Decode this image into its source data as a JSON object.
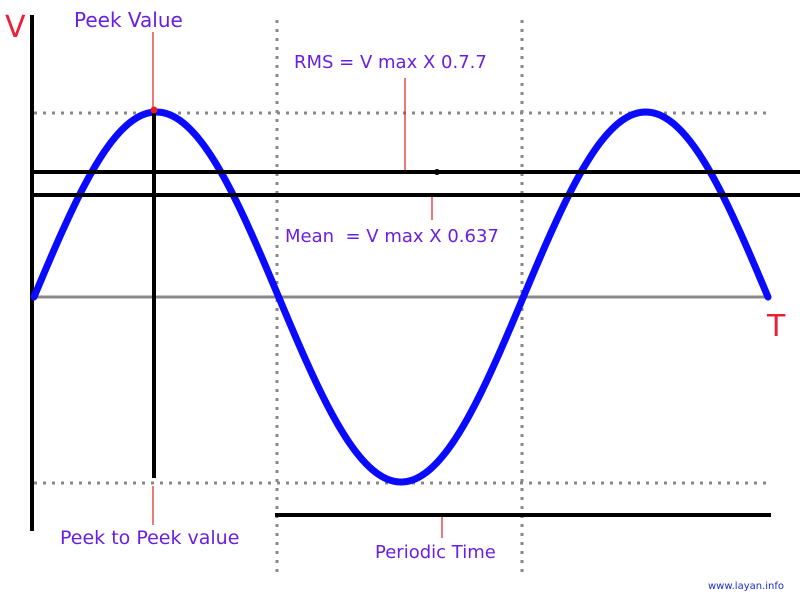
{
  "axis": {
    "y_label": "V",
    "x_label": "T"
  },
  "labels": {
    "peak_value": "Peek Value",
    "rms": "RMS = V max X 0.7.7",
    "mean": "Mean  = V max X 0.637",
    "peak_to_peak": "Peek to Peek value",
    "periodic_time": "Periodic Time",
    "watermark": "www.layan.info"
  },
  "colors": {
    "wave": "#0a0aff",
    "axis_letters": "#e8203a",
    "labels": "#6a1fe0",
    "marker": "#e0201f",
    "lines": "#000000",
    "baseline": "#888888",
    "dotted": "#888888",
    "watermark": "#1a2ad0"
  },
  "waveform": {
    "type": "sine",
    "cycles": 1.5
  }
}
